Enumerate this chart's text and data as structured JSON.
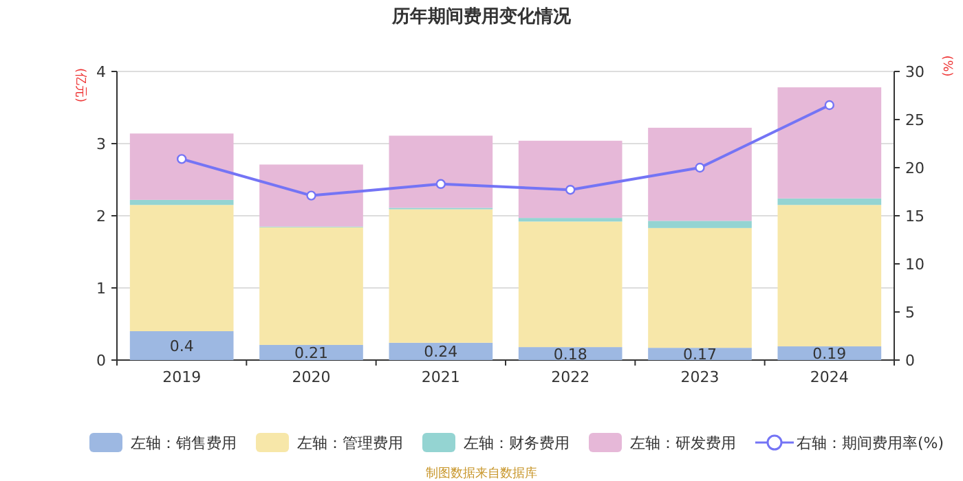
{
  "chart_data": {
    "type": "bar",
    "title": "历年期间费用变化情况",
    "ylabel": "(亿元)",
    "y2label": "(%)",
    "stacked": true,
    "categories": [
      "2019",
      "2020",
      "2021",
      "2022",
      "2023",
      "2024"
    ],
    "series": [
      {
        "name": "左轴：销售费用",
        "color": "#9db8e2",
        "values": [
          0.4,
          0.21,
          0.24,
          0.18,
          0.17,
          0.19
        ],
        "value_labels": [
          "0.4",
          "0.21",
          "0.24",
          "0.18",
          "0.17",
          "0.19"
        ]
      },
      {
        "name": "左轴：管理费用",
        "color": "#f7e7a9",
        "values": [
          1.75,
          1.63,
          1.85,
          1.74,
          1.66,
          1.96
        ]
      },
      {
        "name": "左轴：财务费用",
        "color": "#94d4d2",
        "values": [
          0.07,
          0.01,
          0.02,
          0.05,
          0.1,
          0.09
        ]
      },
      {
        "name": "左轴：研发费用",
        "color": "#e6b8d8",
        "values": [
          0.92,
          0.86,
          1.0,
          1.07,
          1.29,
          1.54
        ]
      },
      {
        "name": "右轴：期间费用率(%)",
        "color": "#7474f5",
        "type": "line",
        "axis": "y2",
        "marker": "circle",
        "values": [
          20.9,
          17.1,
          18.3,
          17.7,
          20.0,
          26.5
        ]
      }
    ],
    "ylim": [
      0,
      4
    ],
    "yticks": [
      0,
      1,
      2,
      3,
      4
    ],
    "y2lim": [
      0,
      30
    ],
    "y2ticks": [
      0,
      5,
      10,
      15,
      20,
      25,
      30
    ],
    "grid": "y",
    "legend": "bottom",
    "annotations": [
      "制图数据来自数据库"
    ]
  }
}
